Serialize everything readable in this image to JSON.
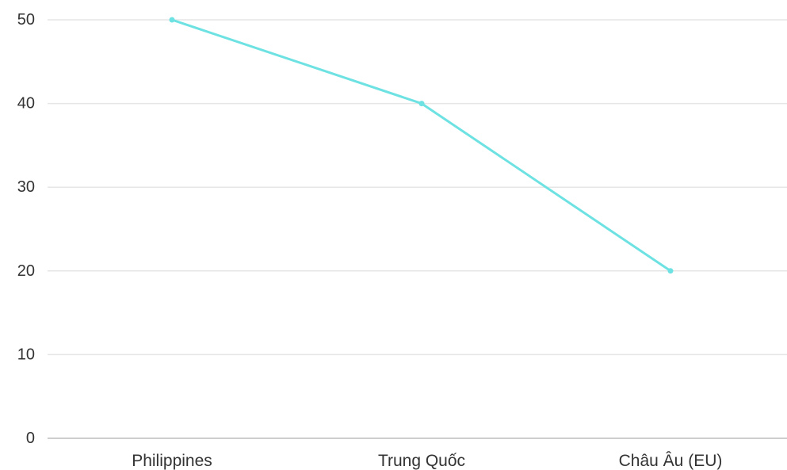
{
  "chart_data": {
    "type": "line",
    "categories": [
      "Philippines",
      "Trung Quốc",
      "Châu Âu (EU)"
    ],
    "series": [
      {
        "values": [
          50,
          40,
          20
        ]
      }
    ],
    "ylim": [
      0,
      50
    ],
    "yticks": [
      "0",
      "10",
      "20",
      "30",
      "40",
      "50"
    ],
    "grid": true,
    "legend": "none",
    "title": "",
    "xlabel": "",
    "ylabel": "",
    "colors": {
      "series": "#6ee2e2",
      "grid": "#e6e6e6",
      "axis": "#bdbdbd",
      "text": "#333333"
    }
  }
}
